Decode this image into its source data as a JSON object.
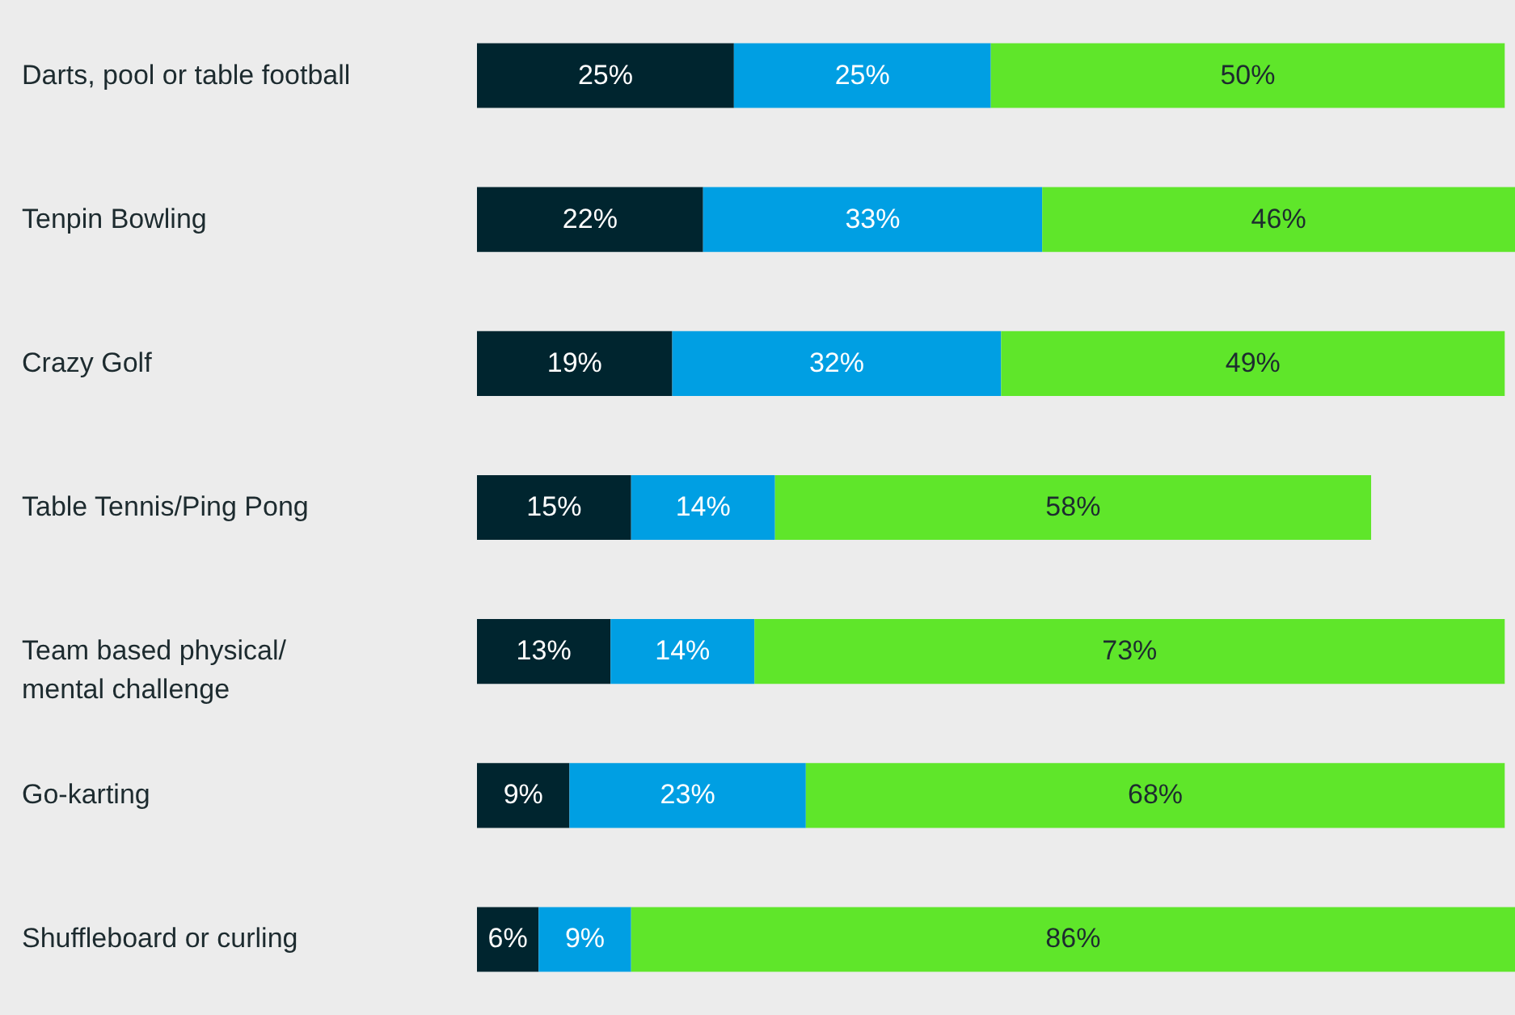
{
  "chart_data": {
    "type": "bar",
    "orientation": "horizontal",
    "stacked": true,
    "tick_labels": "y",
    "categories": [
      "Darts, pool or table football",
      "Tenpin Bowling",
      "Crazy Golf",
      "Table Tennis/Ping Pong",
      "Team based physical/\nmental challenge",
      "Go-karting",
      "Shuffleboard or curling"
    ],
    "series": [
      {
        "color": "#00252f",
        "values": [
          25,
          22,
          19,
          15,
          13,
          9,
          6
        ],
        "value_labels": [
          "25%",
          "22%",
          "19%",
          "15%",
          "13%",
          "9%",
          "6%"
        ]
      },
      {
        "color": "#009fe3",
        "values": [
          25,
          33,
          32,
          14,
          14,
          23,
          9
        ],
        "value_labels": [
          "25%",
          "33%",
          "32%",
          "14%",
          "14%",
          "23%",
          "9%"
        ]
      },
      {
        "color": "#5fe62a",
        "values": [
          50,
          46,
          49,
          58,
          73,
          68,
          86
        ],
        "value_labels": [
          "50%",
          "46%",
          "49%",
          "58%",
          "73%",
          "68%",
          "86%"
        ]
      }
    ]
  }
}
